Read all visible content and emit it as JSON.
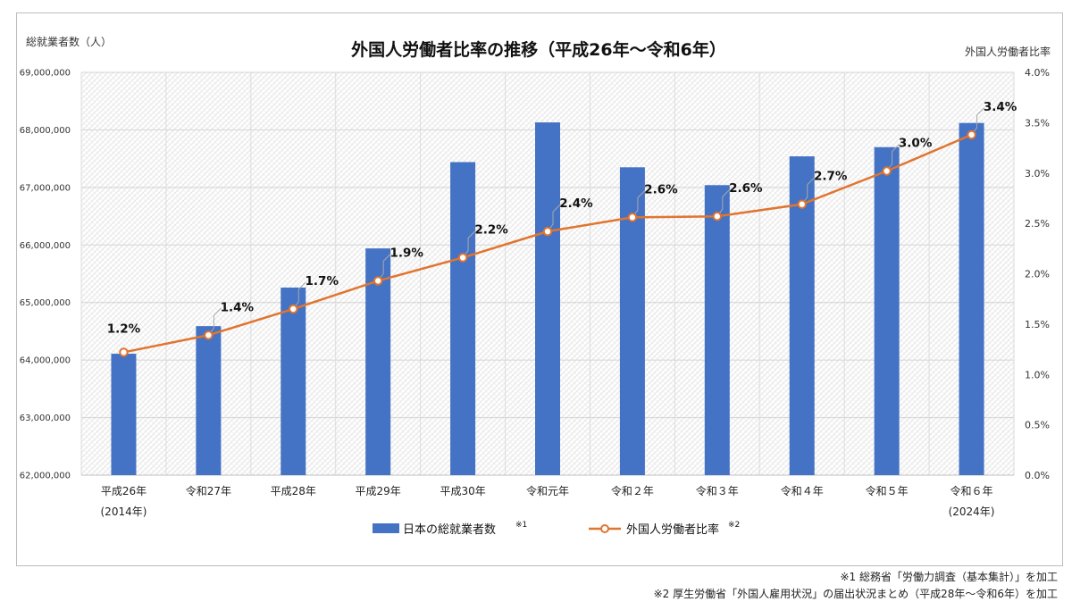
{
  "chart_data": {
    "type": "bar+line",
    "title": "外国人労働者比率の推移（平成26年～令和6年）",
    "left_axis_label": "総就業者数（人）",
    "right_axis_label": "外国人労働者比率",
    "categories": [
      "平成26年",
      "令和27年",
      "平成28年",
      "平成29年",
      "平成30年",
      "令和元年",
      "令和２年",
      "令和３年",
      "令和４年",
      "令和５年",
      "令和６年"
    ],
    "category_sublabels": [
      "(2014年)",
      "",
      "",
      "",
      "",
      "",
      "",
      "",
      "",
      "",
      "(2024年)"
    ],
    "left_ylim": [
      62000000,
      69000000
    ],
    "left_ticks": [
      "62,000,000",
      "63,000,000",
      "64,000,000",
      "65,000,000",
      "66,000,000",
      "67,000,000",
      "68,000,000",
      "69,000,000"
    ],
    "right_ylim": [
      0,
      4.0
    ],
    "right_ticks": [
      "0.0%",
      "0.5%",
      "1.0%",
      "1.5%",
      "2.0%",
      "2.5%",
      "3.0%",
      "3.5%",
      "4.0%"
    ],
    "series": [
      {
        "name": "日本の総就業者数",
        "note_mark": "※1",
        "type": "bar",
        "axis": "left",
        "color": "#4472c4",
        "values": [
          64110000,
          64590000,
          65260000,
          65940000,
          67440000,
          68130000,
          67350000,
          67040000,
          67540000,
          67700000,
          68120000
        ]
      },
      {
        "name": "外国人労働者比率",
        "note_mark": "※2",
        "type": "line",
        "axis": "right",
        "color": "#e0752f",
        "values": [
          1.22,
          1.39,
          1.65,
          1.93,
          2.16,
          2.42,
          2.56,
          2.57,
          2.69,
          3.02,
          3.38
        ],
        "labels": [
          "1.2%",
          "1.4%",
          "1.7%",
          "1.9%",
          "2.2%",
          "2.4%",
          "2.6%",
          "2.6%",
          "2.7%",
          "3.0%",
          "3.4%"
        ]
      }
    ],
    "grid": true,
    "legend_position": "bottom"
  },
  "footnotes": [
    "※1 総務省「労働力調査（基本集計）」を加工",
    "※2 厚生労働省「外国人雇用状況」の届出状況まとめ（平成28年～令和6年）を加工"
  ]
}
